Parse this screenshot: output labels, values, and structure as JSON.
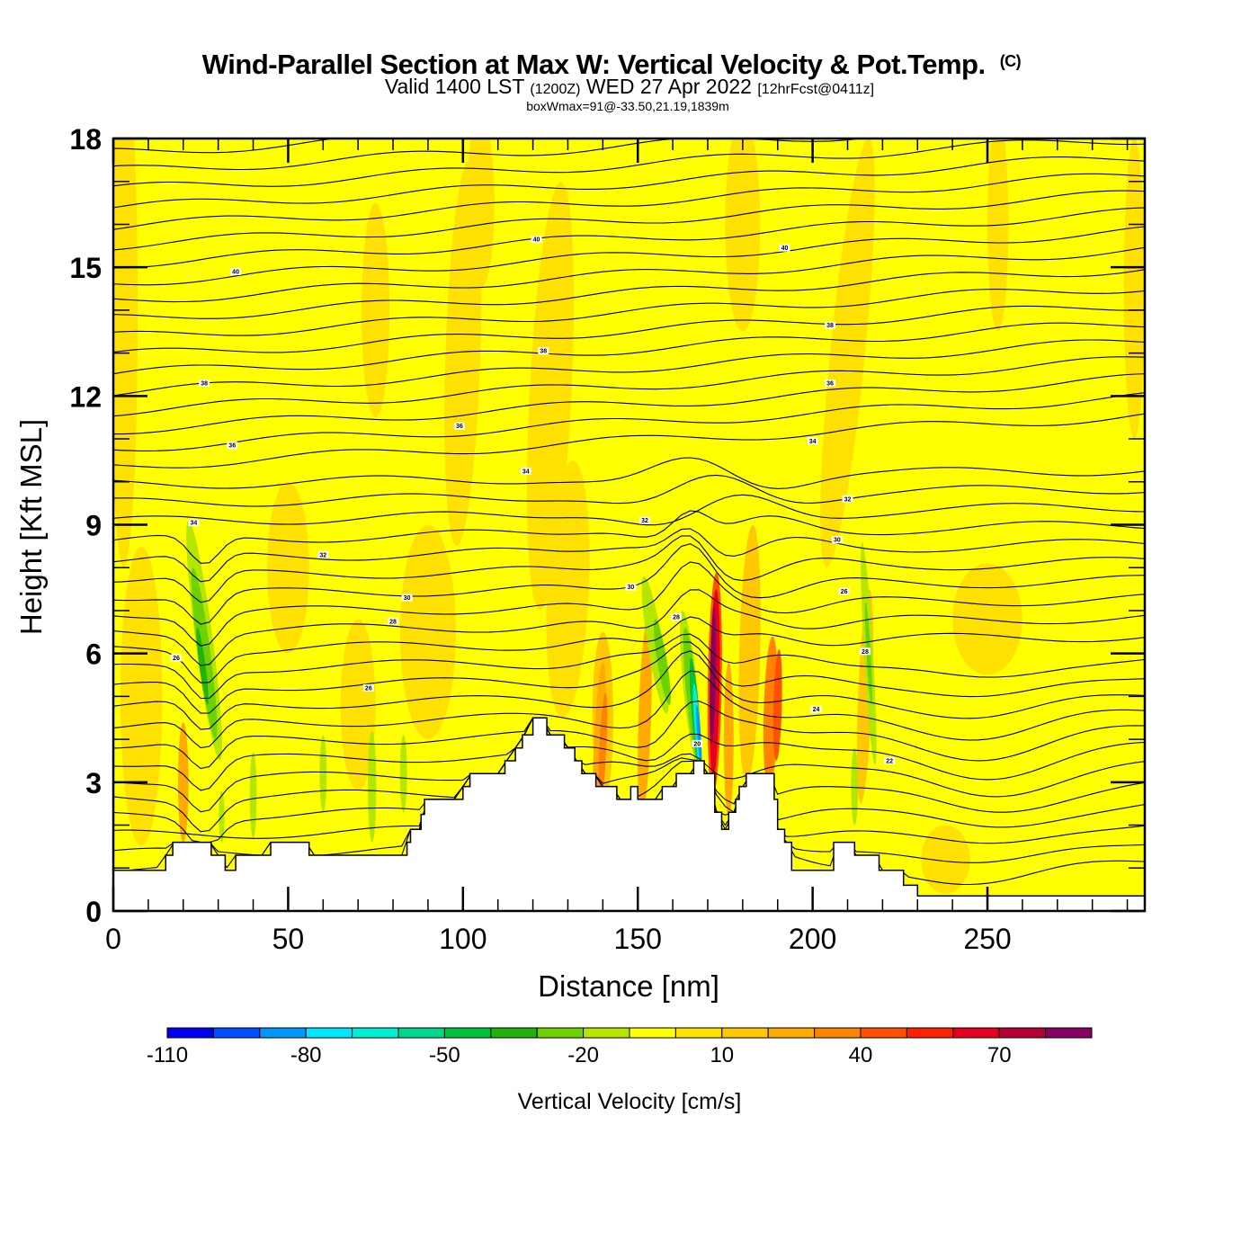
{
  "chart_data": {
    "type": "contourf",
    "title": "Wind-Parallel Section at Max W: Vertical Velocity & Pot.Temp.",
    "title_suffix": "(C)",
    "subtitle": {
      "valid_prefix": "Valid 1400 LST",
      "utc": "(1200Z)",
      "date": "WED 27 Apr 2022",
      "forecast": "[12hrFcst@0411z]"
    },
    "subsubtitle": "boxWmax=91@-33.50,21.19,1839m",
    "xlabel": "Distance [nm]",
    "ylabel": "Height [Kft MSL]",
    "xlim": [
      0,
      295
    ],
    "ylim": [
      0,
      18
    ],
    "xticks": [
      0,
      50,
      100,
      150,
      200,
      250
    ],
    "xtick_labels": [
      "0",
      "50",
      "100",
      "150",
      "200",
      "250"
    ],
    "x_minor_step": 10,
    "yticks": [
      0,
      3,
      6,
      9,
      12,
      15,
      18
    ],
    "ytick_labels": [
      "0",
      "3",
      "6",
      "9",
      "12",
      "15",
      "18"
    ],
    "y_minor_step": 1,
    "colorbar": {
      "title": "Vertical Velocity [cm/s]",
      "levels": [
        -110,
        -100,
        -90,
        -80,
        -70,
        -60,
        -50,
        -40,
        -30,
        -20,
        -10,
        0,
        10,
        20,
        30,
        40,
        50,
        60,
        70,
        80,
        90
      ],
      "tick_values": [
        -110,
        -80,
        -50,
        -20,
        10,
        40,
        70
      ],
      "tick_labels": [
        "-110",
        "-80",
        "-50",
        "-20",
        "10",
        "40",
        "70"
      ],
      "colors": [
        "#0000f0",
        "#0050ff",
        "#0096ff",
        "#00e6ff",
        "#00f0d2",
        "#00d68c",
        "#00c03c",
        "#20b40a",
        "#6ed200",
        "#b4e600",
        "#ffff00",
        "#ffe100",
        "#ffc800",
        "#ffaa00",
        "#ff8200",
        "#ff5000",
        "#ff2000",
        "#e6001e",
        "#b40036",
        "#870064"
      ]
    },
    "theta_contours": {
      "units": "C",
      "interval": 1,
      "labeled_values": [
        40,
        38,
        36,
        35,
        34,
        32,
        30,
        28,
        26,
        24,
        22
      ],
      "labels": [
        {
          "value": "40",
          "x": 35,
          "y": 14.9
        },
        {
          "value": "40",
          "x": 121,
          "y": 15.65
        },
        {
          "value": "40",
          "x": 192,
          "y": 15.45
        },
        {
          "value": "38",
          "x": 205,
          "y": 13.65
        },
        {
          "value": "38",
          "x": 123,
          "y": 13.05
        },
        {
          "value": "38",
          "x": 26,
          "y": 12.3
        },
        {
          "value": "36",
          "x": 205,
          "y": 12.3
        },
        {
          "value": "36",
          "x": 99,
          "y": 11.3
        },
        {
          "value": "36",
          "x": 34,
          "y": 10.85
        },
        {
          "value": "34",
          "x": 200,
          "y": 10.95
        },
        {
          "value": "34",
          "x": 118,
          "y": 10.25
        },
        {
          "value": "34",
          "x": 23,
          "y": 9.05
        },
        {
          "value": "32",
          "x": 60,
          "y": 8.3
        },
        {
          "value": "32",
          "x": 210,
          "y": 9.6
        },
        {
          "value": "32",
          "x": 152,
          "y": 9.1
        },
        {
          "value": "30",
          "x": 207,
          "y": 8.65
        },
        {
          "value": "30",
          "x": 84,
          "y": 7.3
        },
        {
          "value": "30",
          "x": 148,
          "y": 7.55
        },
        {
          "value": "28",
          "x": 80,
          "y": 6.75
        },
        {
          "value": "28",
          "x": 215,
          "y": 6.05
        },
        {
          "value": "28",
          "x": 161,
          "y": 6.85
        },
        {
          "value": "26",
          "x": 18,
          "y": 5.9
        },
        {
          "value": "26",
          "x": 73,
          "y": 5.2
        },
        {
          "value": "26",
          "x": 209,
          "y": 7.45
        },
        {
          "value": "24",
          "x": 201,
          "y": 4.7
        },
        {
          "value": "22",
          "x": 222,
          "y": 3.5
        },
        {
          "value": "20",
          "x": 167,
          "y": 3.9
        }
      ]
    },
    "terrain_top_kft": {
      "x_step_nm": 1,
      "note": "stepped model-terrain profile (kft) sampled along distance",
      "segments": [
        [
          0,
          0.95
        ],
        [
          15,
          1.3
        ],
        [
          17,
          1.6
        ],
        [
          28,
          1.3
        ],
        [
          32,
          0.95
        ],
        [
          35,
          1.3
        ],
        [
          45,
          1.6
        ],
        [
          56,
          1.3
        ],
        [
          84,
          1.6
        ],
        [
          85,
          1.9
        ],
        [
          88,
          2.25
        ],
        [
          89,
          2.6
        ],
        [
          100,
          2.9
        ],
        [
          102,
          3.2
        ],
        [
          112,
          3.5
        ],
        [
          115,
          3.8
        ],
        [
          117,
          4.1
        ],
        [
          120,
          4.5
        ],
        [
          124,
          4.1
        ],
        [
          129,
          3.8
        ],
        [
          132,
          3.5
        ],
        [
          134,
          3.2
        ],
        [
          138,
          2.9
        ],
        [
          144,
          2.6
        ],
        [
          148,
          2.9
        ],
        [
          150,
          2.6
        ],
        [
          157,
          2.9
        ],
        [
          161,
          3.2
        ],
        [
          166,
          3.5
        ],
        [
          169,
          3.2
        ],
        [
          172,
          2.3
        ],
        [
          174,
          1.9
        ],
        [
          176,
          2.3
        ],
        [
          178,
          2.6
        ],
        [
          179,
          2.9
        ],
        [
          181,
          3.2
        ],
        [
          189,
          2.6
        ],
        [
          190,
          1.9
        ],
        [
          192,
          1.6
        ],
        [
          194,
          0.95
        ],
        [
          206,
          1.6
        ],
        [
          212,
          1.3
        ],
        [
          219,
          0.95
        ],
        [
          226,
          0.6
        ],
        [
          230,
          0.35
        ],
        [
          295,
          0.35
        ]
      ]
    }
  }
}
